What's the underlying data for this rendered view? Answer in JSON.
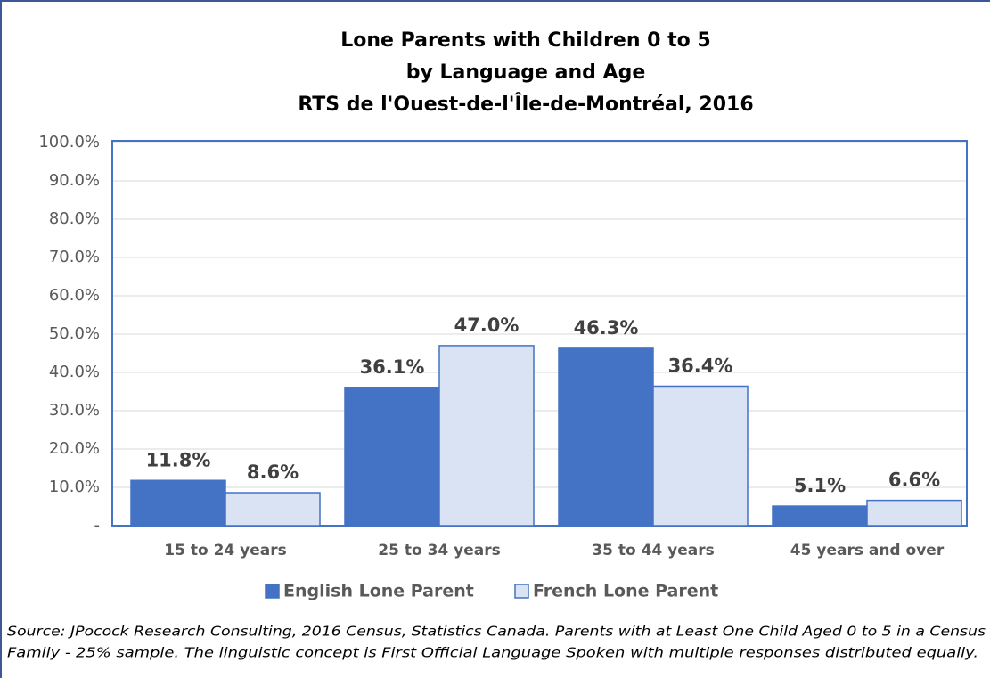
{
  "chart_data": {
    "type": "bar",
    "title": [
      "Lone Parents with Children 0 to 5",
      "by Language and Age",
      "RTS de l'Ouest-de-l'Île-de-Montréal, 2016"
    ],
    "categories": [
      "15 to 24 years",
      "25 to 34 years",
      "35 to 44 years",
      "45 years and over"
    ],
    "series": [
      {
        "name": "English Lone Parent",
        "color": "#4472c4",
        "edgecolor": "#4472c4",
        "values": [
          11.8,
          36.1,
          46.3,
          5.1
        ],
        "value_labels": [
          "11.8%",
          "36.1%",
          "46.3%",
          "5.1%"
        ]
      },
      {
        "name": "French Lone Parent",
        "color": "#dae3f3",
        "edgecolor": "#4472c4",
        "values": [
          8.6,
          47.0,
          36.4,
          6.6
        ],
        "value_labels": [
          "8.6%",
          "47.0%",
          "36.4%",
          "6.6%"
        ]
      }
    ],
    "ylim": [
      0,
      100
    ],
    "yticks": [
      {
        "value": 0,
        "label": "-"
      },
      {
        "value": 10,
        "label": "10.0%"
      },
      {
        "value": 20,
        "label": "20.0%"
      },
      {
        "value": 30,
        "label": "30.0%"
      },
      {
        "value": 40,
        "label": "40.0%"
      },
      {
        "value": 50,
        "label": "50.0%"
      },
      {
        "value": 60,
        "label": "60.0%"
      },
      {
        "value": 70,
        "label": "70.0%"
      },
      {
        "value": 80,
        "label": "80.0%"
      },
      {
        "value": 90,
        "label": "90.0%"
      },
      {
        "value": 100,
        "label": "100.0%"
      }
    ],
    "grid": true,
    "legend": "bottom",
    "note": [
      "Source: JPocock Research Consulting, 2016 Census, Statistics Canada. Parents with at Least One Child Aged 0 to 5 in a Census",
      "Family - 25% sample. The linguistic concept is First Official Language Spoken with multiple responses distributed equally."
    ]
  }
}
